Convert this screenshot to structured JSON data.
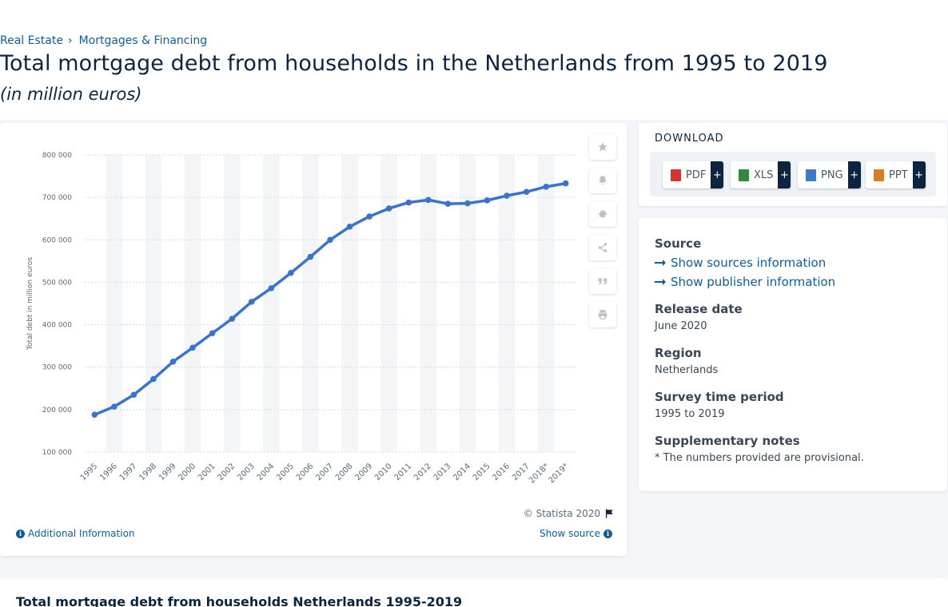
{
  "breadcrumb": {
    "items": [
      "Real Estate",
      "Mortgages & Financing"
    ],
    "separator": "›"
  },
  "page": {
    "title": "Total mortgage debt from households in the Netherlands from 1995 to 2019",
    "subtitle": "(in million euros)"
  },
  "chart_data": {
    "type": "line",
    "categories": [
      "1995",
      "1996",
      "1997",
      "1998",
      "1999",
      "2000",
      "2001",
      "2002",
      "2003",
      "2004",
      "2005",
      "2006",
      "2007",
      "2008",
      "2009",
      "2010",
      "2011",
      "2012",
      "2013",
      "2014",
      "2015",
      "2016",
      "2017",
      "2018*",
      "2019*"
    ],
    "series": [
      {
        "values": [
          188000,
          207000,
          235000,
          272000,
          313000,
          346000,
          380000,
          414000,
          454000,
          486000,
          522000,
          560000,
          600000,
          631000,
          655000,
          674000,
          688000,
          694000,
          685000,
          686000,
          693000,
          704000,
          713000,
          725000,
          733000
        ]
      }
    ],
    "ylabel": "Total debt in million euros",
    "xlabel": "",
    "ylim": [
      100000,
      800000
    ],
    "yticks": [
      "100 000",
      "200 000",
      "300 000",
      "400 000",
      "500 000",
      "600 000",
      "700 000",
      "800 000"
    ],
    "line_color": "#3a72cf",
    "grid": true
  },
  "chart_footer": {
    "copyright": "© Statista 2020",
    "additional_info": "Additional Information",
    "show_source": "Show source"
  },
  "tools": [
    "star-icon",
    "bell-icon",
    "gear-icon",
    "share-icon",
    "quote-icon",
    "print-icon"
  ],
  "download": {
    "title": "DOWNLOAD",
    "formats": [
      {
        "label": "PDF",
        "color": "#d9322b"
      },
      {
        "label": "XLS",
        "color": "#2e8b3d"
      },
      {
        "label": "PNG",
        "color": "#3d7ac9"
      },
      {
        "label": "PPT",
        "color": "#e07a1f"
      }
    ],
    "plus": "+"
  },
  "meta": {
    "source_label": "Source",
    "show_sources": "Show sources information",
    "show_publisher": "Show publisher information",
    "release_label": "Release date",
    "release_value": "June 2020",
    "region_label": "Region",
    "region_value": "Netherlands",
    "survey_label": "Survey time period",
    "survey_value": "1995 to 2019",
    "notes_label": "Supplementary notes",
    "notes_value": "* The numbers provided are provisional."
  },
  "bottom": {
    "title": "Total mortgage debt from households Netherlands 1995-2019"
  }
}
